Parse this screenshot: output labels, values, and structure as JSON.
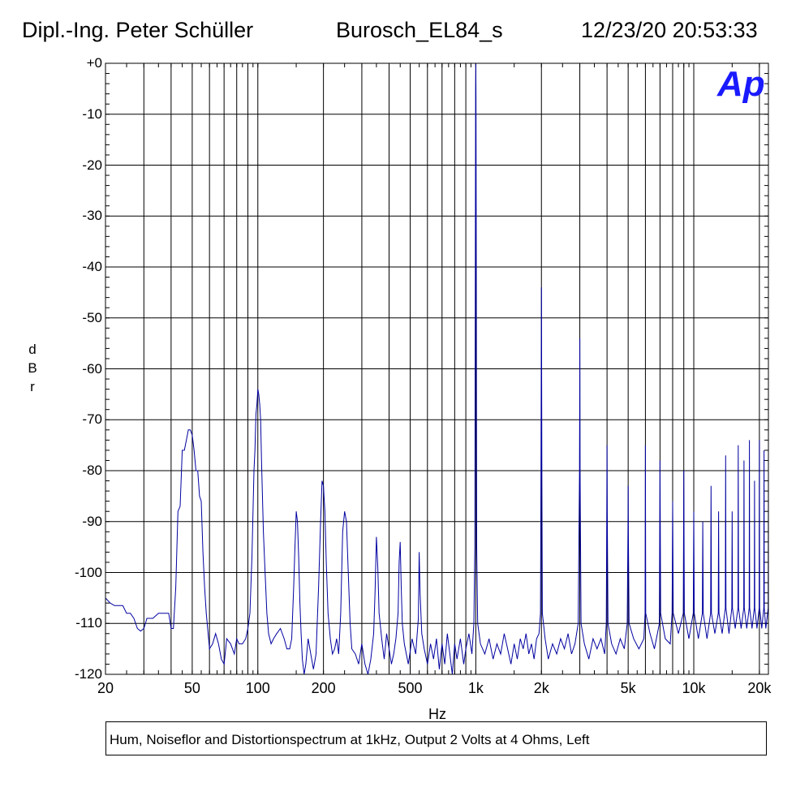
{
  "header": {
    "author": "Dipl.-Ing. Peter Schüller",
    "title": "Burosch_EL84_s",
    "datetime": "12/23/20 20:53:33"
  },
  "logo": {
    "text": "Ap",
    "color": "#1a1aff"
  },
  "caption": "Hum, Noiseflor and Distortionspectrum at 1kHz, Output 2 Volts at 4 Ohms, Left",
  "chart_data": {
    "type": "line",
    "title": "Hum, Noiseflor and Distortionspectrum at 1kHz, Output 2 Volts at 4 Ohms, Left",
    "xlabel": "Hz",
    "ylabel": [
      "d",
      "B",
      "r"
    ],
    "xscale": "log",
    "xlim": [
      20,
      22000
    ],
    "ylim": [
      -120,
      0
    ],
    "grid": true,
    "line_color": "#0000a0",
    "x_ticks": [
      {
        "value": 20,
        "label": "20"
      },
      {
        "value": 50,
        "label": "50"
      },
      {
        "value": 100,
        "label": "100"
      },
      {
        "value": 200,
        "label": "200"
      },
      {
        "value": 500,
        "label": "500"
      },
      {
        "value": 1000,
        "label": "1k"
      },
      {
        "value": 2000,
        "label": "2k"
      },
      {
        "value": 5000,
        "label": "5k"
      },
      {
        "value": 10000,
        "label": "10k"
      },
      {
        "value": 20000,
        "label": "20k"
      }
    ],
    "y_ticks": [
      {
        "value": 0,
        "label": "+0"
      },
      {
        "value": -10,
        "label": "-10"
      },
      {
        "value": -20,
        "label": "-20"
      },
      {
        "value": -30,
        "label": "-30"
      },
      {
        "value": -40,
        "label": "-40"
      },
      {
        "value": -50,
        "label": "-50"
      },
      {
        "value": -60,
        "label": "-60"
      },
      {
        "value": -70,
        "label": "-70"
      },
      {
        "value": -80,
        "label": "-80"
      },
      {
        "value": -90,
        "label": "-90"
      },
      {
        "value": -100,
        "label": "-100"
      },
      {
        "value": -110,
        "label": "-110"
      },
      {
        "value": -120,
        "label": "-120"
      }
    ],
    "series": [
      {
        "name": "Left",
        "points": [
          [
            20,
            -105
          ],
          [
            21,
            -106
          ],
          [
            22,
            -106.5
          ],
          [
            24,
            -106.5
          ],
          [
            25,
            -108
          ],
          [
            26,
            -108
          ],
          [
            27,
            -109
          ],
          [
            28,
            -111
          ],
          [
            29,
            -111.5
          ],
          [
            30,
            -111
          ],
          [
            31,
            -109
          ],
          [
            33,
            -109
          ],
          [
            35,
            -108
          ],
          [
            37,
            -108
          ],
          [
            39,
            -108
          ],
          [
            40,
            -111
          ],
          [
            41,
            -111
          ],
          [
            42,
            -103
          ],
          [
            43,
            -88
          ],
          [
            44,
            -87
          ],
          [
            45,
            -76
          ],
          [
            46,
            -76
          ],
          [
            47,
            -74
          ],
          [
            48,
            -72
          ],
          [
            49,
            -72
          ],
          [
            50,
            -73
          ],
          [
            51,
            -76
          ],
          [
            52,
            -80
          ],
          [
            53,
            -80
          ],
          [
            54,
            -85
          ],
          [
            55,
            -86
          ],
          [
            56,
            -96
          ],
          [
            57,
            -103
          ],
          [
            58,
            -108
          ],
          [
            60,
            -115
          ],
          [
            62,
            -114
          ],
          [
            64,
            -112
          ],
          [
            66,
            -114
          ],
          [
            68,
            -117
          ],
          [
            70,
            -118
          ],
          [
            72,
            -113
          ],
          [
            75,
            -114
          ],
          [
            78,
            -116
          ],
          [
            80,
            -113
          ],
          [
            82,
            -114
          ],
          [
            85,
            -114
          ],
          [
            88,
            -113
          ],
          [
            90,
            -111
          ],
          [
            92,
            -108
          ],
          [
            94,
            -97
          ],
          [
            96,
            -80
          ],
          [
            97,
            -76
          ],
          [
            98,
            -69
          ],
          [
            99,
            -67
          ],
          [
            100,
            -64
          ],
          [
            101,
            -65
          ],
          [
            102,
            -67
          ],
          [
            103,
            -70
          ],
          [
            104,
            -78
          ],
          [
            106,
            -92
          ],
          [
            108,
            -100
          ],
          [
            110,
            -108
          ],
          [
            112,
            -112
          ],
          [
            115,
            -114
          ],
          [
            118,
            -113
          ],
          [
            122,
            -112
          ],
          [
            127,
            -111
          ],
          [
            132,
            -113
          ],
          [
            136,
            -115
          ],
          [
            140,
            -115
          ],
          [
            143,
            -113
          ],
          [
            146,
            -103
          ],
          [
            148,
            -95
          ],
          [
            150,
            -88
          ],
          [
            152,
            -90
          ],
          [
            154,
            -97
          ],
          [
            156,
            -106
          ],
          [
            158,
            -112
          ],
          [
            160,
            -117
          ],
          [
            163,
            -121
          ],
          [
            166,
            -118
          ],
          [
            170,
            -113
          ],
          [
            175,
            -116
          ],
          [
            180,
            -119
          ],
          [
            185,
            -116
          ],
          [
            190,
            -103
          ],
          [
            194,
            -90
          ],
          [
            197,
            -82
          ],
          [
            200,
            -83
          ],
          [
            203,
            -88
          ],
          [
            206,
            -98
          ],
          [
            210,
            -108
          ],
          [
            215,
            -113
          ],
          [
            220,
            -116
          ],
          [
            225,
            -115
          ],
          [
            230,
            -113
          ],
          [
            235,
            -116
          ],
          [
            240,
            -108
          ],
          [
            245,
            -92
          ],
          [
            250,
            -88
          ],
          [
            255,
            -90
          ],
          [
            260,
            -100
          ],
          [
            265,
            -110
          ],
          [
            270,
            -115
          ],
          [
            280,
            -116
          ],
          [
            290,
            -118
          ],
          [
            300,
            -114
          ],
          [
            310,
            -118
          ],
          [
            320,
            -121
          ],
          [
            330,
            -117
          ],
          [
            340,
            -112
          ],
          [
            345,
            -104
          ],
          [
            350,
            -93
          ],
          [
            355,
            -99
          ],
          [
            360,
            -108
          ],
          [
            370,
            -113
          ],
          [
            380,
            -117
          ],
          [
            390,
            -112
          ],
          [
            400,
            -115
          ],
          [
            410,
            -118
          ],
          [
            420,
            -116
          ],
          [
            430,
            -113
          ],
          [
            440,
            -108
          ],
          [
            445,
            -98
          ],
          [
            450,
            -94
          ],
          [
            455,
            -103
          ],
          [
            460,
            -110
          ],
          [
            470,
            -114
          ],
          [
            490,
            -118
          ],
          [
            510,
            -113
          ],
          [
            530,
            -116
          ],
          [
            545,
            -109
          ],
          [
            550,
            -96
          ],
          [
            555,
            -104
          ],
          [
            565,
            -112
          ],
          [
            580,
            -115
          ],
          [
            600,
            -118
          ],
          [
            620,
            -114
          ],
          [
            640,
            -117
          ],
          [
            660,
            -113
          ],
          [
            680,
            -119
          ],
          [
            700,
            -114
          ],
          [
            720,
            -118
          ],
          [
            740,
            -112
          ],
          [
            760,
            -116
          ],
          [
            780,
            -120
          ],
          [
            800,
            -114
          ],
          [
            820,
            -117
          ],
          [
            850,
            -113
          ],
          [
            880,
            -118
          ],
          [
            900,
            -115
          ],
          [
            930,
            -112
          ],
          [
            960,
            -116
          ],
          [
            980,
            -110
          ],
          [
            990,
            -95
          ],
          [
            995,
            -40
          ],
          [
            998,
            -5
          ],
          [
            1000,
            0
          ],
          [
            1002,
            -6
          ],
          [
            1005,
            -40
          ],
          [
            1010,
            -95
          ],
          [
            1020,
            -110
          ],
          [
            1050,
            -114
          ],
          [
            1100,
            -116
          ],
          [
            1150,
            -113
          ],
          [
            1200,
            -117
          ],
          [
            1250,
            -114
          ],
          [
            1300,
            -116
          ],
          [
            1350,
            -112
          ],
          [
            1400,
            -115
          ],
          [
            1450,
            -118
          ],
          [
            1500,
            -114
          ],
          [
            1550,
            -117
          ],
          [
            1600,
            -113
          ],
          [
            1650,
            -115
          ],
          [
            1700,
            -112
          ],
          [
            1750,
            -116
          ],
          [
            1800,
            -114
          ],
          [
            1850,
            -117
          ],
          [
            1900,
            -113
          ],
          [
            1950,
            -112
          ],
          [
            1980,
            -108
          ],
          [
            1990,
            -80
          ],
          [
            2000,
            -44
          ],
          [
            2010,
            -80
          ],
          [
            2020,
            -108
          ],
          [
            2080,
            -113
          ],
          [
            2150,
            -117
          ],
          [
            2250,
            -114
          ],
          [
            2350,
            -116
          ],
          [
            2450,
            -113
          ],
          [
            2550,
            -115
          ],
          [
            2650,
            -112
          ],
          [
            2750,
            -116
          ],
          [
            2850,
            -114
          ],
          [
            2950,
            -110
          ],
          [
            2990,
            -80
          ],
          [
            3000,
            -54
          ],
          [
            3010,
            -80
          ],
          [
            3040,
            -110
          ],
          [
            3150,
            -114
          ],
          [
            3300,
            -117
          ],
          [
            3450,
            -113
          ],
          [
            3600,
            -115
          ],
          [
            3750,
            -113
          ],
          [
            3900,
            -116
          ],
          [
            3970,
            -110
          ],
          [
            3990,
            -88
          ],
          [
            4000,
            -75
          ],
          [
            4010,
            -88
          ],
          [
            4040,
            -110
          ],
          [
            4200,
            -114
          ],
          [
            4400,
            -116
          ],
          [
            4600,
            -113
          ],
          [
            4800,
            -115
          ],
          [
            4950,
            -110
          ],
          [
            4990,
            -92
          ],
          [
            5000,
            -83
          ],
          [
            5010,
            -92
          ],
          [
            5050,
            -110
          ],
          [
            5300,
            -113
          ],
          [
            5600,
            -115
          ],
          [
            5900,
            -113
          ],
          [
            5980,
            -108
          ],
          [
            6000,
            -75
          ],
          [
            6020,
            -108
          ],
          [
            6300,
            -112
          ],
          [
            6600,
            -115
          ],
          [
            6950,
            -110
          ],
          [
            7000,
            -78
          ],
          [
            7050,
            -108
          ],
          [
            7400,
            -113
          ],
          [
            7800,
            -114
          ],
          [
            7950,
            -108
          ],
          [
            8000,
            -86
          ],
          [
            8050,
            -108
          ],
          [
            8500,
            -112
          ],
          [
            8950,
            -108
          ],
          [
            9000,
            -80
          ],
          [
            9050,
            -108
          ],
          [
            9500,
            -113
          ],
          [
            9950,
            -108
          ],
          [
            10000,
            -88
          ],
          [
            10050,
            -108
          ],
          [
            10500,
            -113
          ],
          [
            10950,
            -108
          ],
          [
            11000,
            -90
          ],
          [
            11050,
            -108
          ],
          [
            11500,
            -113
          ],
          [
            11950,
            -108
          ],
          [
            12000,
            -83
          ],
          [
            12050,
            -108
          ],
          [
            12500,
            -112
          ],
          [
            12950,
            -108
          ],
          [
            13000,
            -88
          ],
          [
            13050,
            -108
          ],
          [
            13500,
            -112
          ],
          [
            13950,
            -107
          ],
          [
            14000,
            -77
          ],
          [
            14050,
            -107
          ],
          [
            14500,
            -112
          ],
          [
            14950,
            -107
          ],
          [
            15000,
            -88
          ],
          [
            15050,
            -107
          ],
          [
            15500,
            -111
          ],
          [
            15950,
            -107
          ],
          [
            16000,
            -75
          ],
          [
            16050,
            -107
          ],
          [
            16500,
            -111
          ],
          [
            16950,
            -107
          ],
          [
            17000,
            -78
          ],
          [
            17050,
            -107
          ],
          [
            17500,
            -111
          ],
          [
            17950,
            -107
          ],
          [
            18000,
            -74
          ],
          [
            18050,
            -107
          ],
          [
            18500,
            -111
          ],
          [
            18950,
            -107
          ],
          [
            19000,
            -82
          ],
          [
            19050,
            -107
          ],
          [
            19500,
            -111
          ],
          [
            19950,
            -107
          ],
          [
            20000,
            -74
          ],
          [
            20050,
            -107
          ],
          [
            20500,
            -111
          ],
          [
            20950,
            -107
          ],
          [
            21000,
            -76
          ],
          [
            21050,
            -107
          ],
          [
            21400,
            -111
          ],
          [
            21950,
            -107
          ],
          [
            22000,
            -80
          ]
        ]
      }
    ]
  }
}
